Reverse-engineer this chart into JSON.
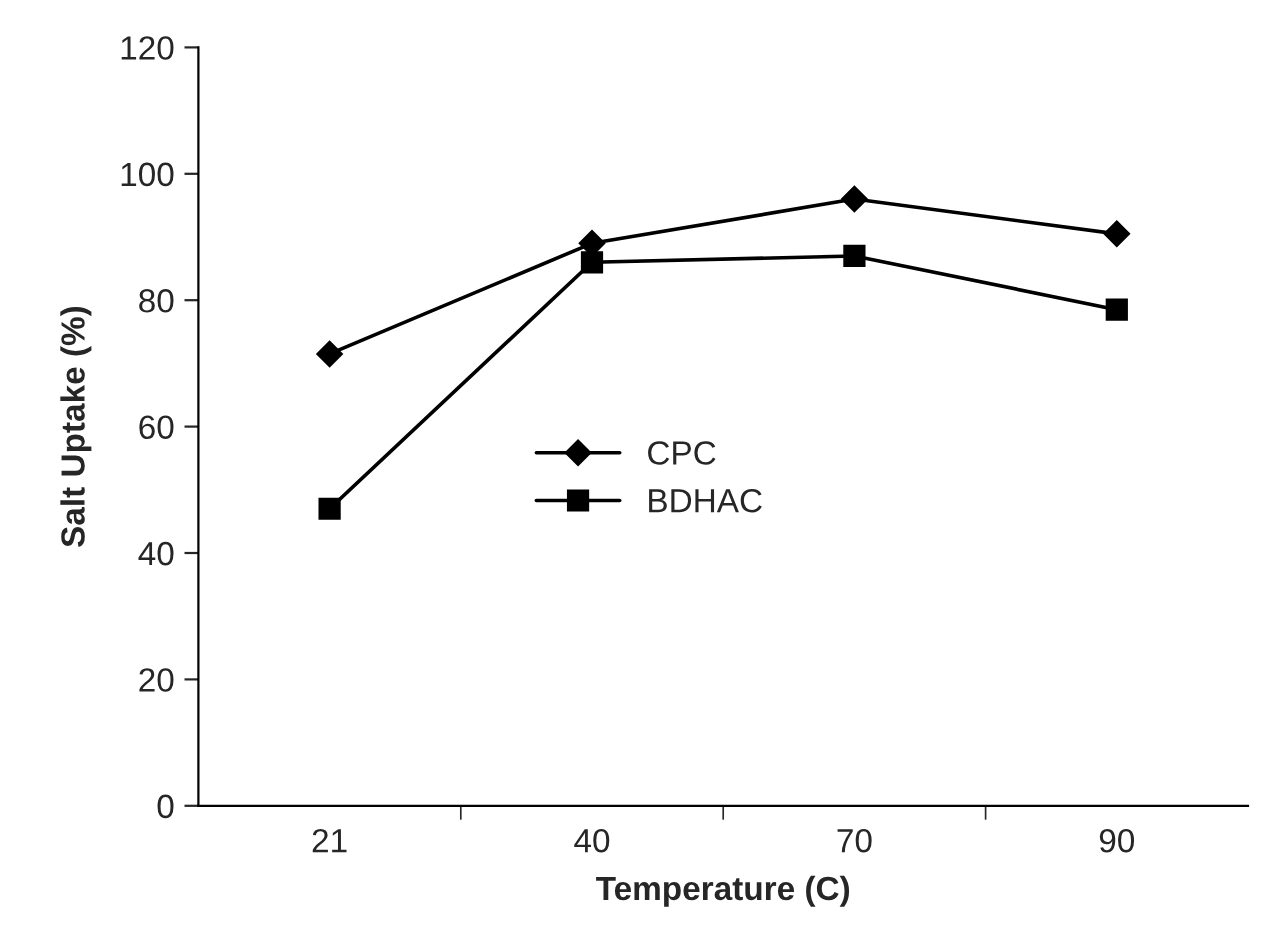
{
  "chart_data": {
    "type": "line",
    "xlabel": "Temperature (C)",
    "ylabel": "Salt Uptake (%)",
    "categories": [
      "21",
      "40",
      "70",
      "90"
    ],
    "series": [
      {
        "name": "CPC",
        "color": "#000000",
        "marker": "diamond",
        "values": [
          71.5,
          89,
          96,
          90.5
        ]
      },
      {
        "name": "BDHAC",
        "color": "#000000",
        "marker": "square",
        "values": [
          47,
          86,
          87,
          78.5
        ]
      }
    ],
    "ylim": [
      0,
      120
    ],
    "yticks": [
      0,
      20,
      40,
      60,
      80,
      100,
      120
    ],
    "grid": false,
    "legend": "center",
    "line_style": "solid"
  }
}
